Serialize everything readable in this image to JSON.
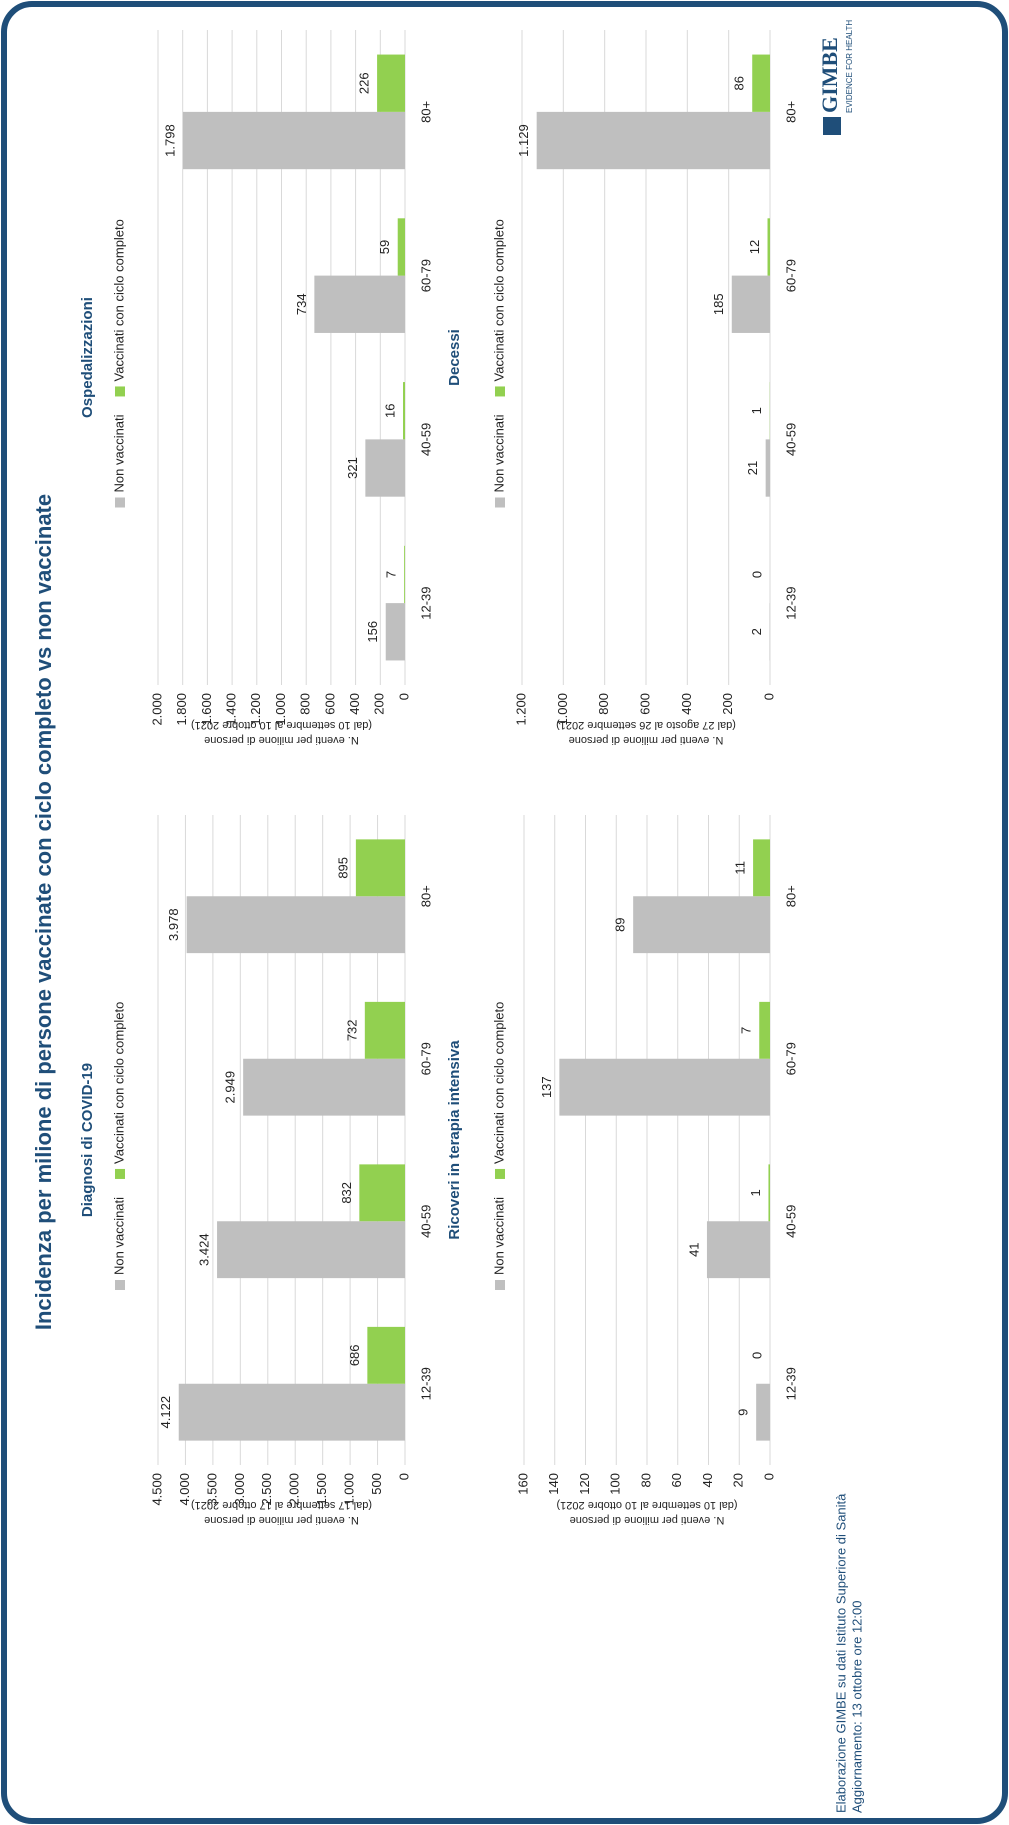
{
  "title": "Incidenza per milione di persone vaccinate con ciclo completo vs non vaccinate",
  "footer": [
    "Elaborazione GIMBE su dati Istituto Superiore di Sanità",
    "Aggiornamento: 13 ottobre ore 12:00"
  ],
  "logo": {
    "name": "GIMBE",
    "tagline": "EVIDENCE FOR HEALTH"
  },
  "chart_data": [
    {
      "type": "bar",
      "title": "Diagnosi di COVID-19",
      "ylabel": [
        "N. eventi per milione di persone",
        "(dal 17 settembre al 17 ottobre 2021)"
      ],
      "categories": [
        "12-39",
        "40-59",
        "60-79",
        "80+"
      ],
      "series": [
        {
          "name": "Non vaccinati",
          "color": "#bfbfbf",
          "values": [
            4122,
            3424,
            2949,
            3978
          ],
          "value_labels": [
            "4.122",
            "3.424",
            "2.949",
            "3.978"
          ]
        },
        {
          "name": "Vaccinati con ciclo completo",
          "color": "#92d050",
          "values": [
            686,
            832,
            732,
            895
          ]
        }
      ],
      "ylim": [
        0,
        4500
      ],
      "yticks": [
        0,
        500,
        {
          "value": 1000,
          "label": "1.000"
        },
        {
          "value": 1500,
          "label": "1.500"
        },
        {
          "value": 2000,
          "label": "2.000"
        },
        {
          "value": 2500,
          "label": "2.500"
        },
        {
          "value": 3000,
          "label": "3.000"
        },
        {
          "value": 3500,
          "label": "3.500"
        },
        {
          "value": 4000,
          "label": "4.000"
        },
        {
          "value": 4500,
          "label": "4.500"
        }
      ],
      "grid": true
    },
    {
      "type": "bar",
      "title": "Ospedalizzazioni",
      "ylabel": [
        "N. eventi per milione di persone",
        "(dal 10 settembre al 10 ottobre 2021)"
      ],
      "categories": [
        "12-39",
        "40-59",
        "60-79",
        "80+"
      ],
      "series": [
        {
          "name": "Non vaccinati",
          "color": "#bfbfbf",
          "values": [
            156,
            321,
            734,
            1798
          ],
          "value_labels": [
            "156",
            "321",
            "734",
            "1.798"
          ]
        },
        {
          "name": "Vaccinati con ciclo completo",
          "color": "#92d050",
          "values": [
            7,
            16,
            59,
            226
          ]
        }
      ],
      "ylim": [
        0,
        2000
      ],
      "yticks": [
        0,
        200,
        400,
        600,
        800,
        {
          "value": 1000,
          "label": "1.000"
        },
        {
          "value": 1200,
          "label": "1.200"
        },
        {
          "value": 1400,
          "label": "1.400"
        },
        {
          "value": 1600,
          "label": "1.600"
        },
        {
          "value": 1800,
          "label": "1.800"
        },
        {
          "value": 2000,
          "label": "2.000"
        }
      ],
      "grid": true
    },
    {
      "type": "bar",
      "title": "Ricoveri in terapia intensiva",
      "ylabel": [
        "N. eventi per milione di persone",
        "(dal 10 settembre al 10 ottobre 2021)"
      ],
      "categories": [
        "12-39",
        "40-59",
        "60-79",
        "80+"
      ],
      "series": [
        {
          "name": "Non vaccinati",
          "color": "#bfbfbf",
          "values": [
            9,
            41,
            137,
            89
          ]
        },
        {
          "name": "Vaccinati con ciclo completo",
          "color": "#92d050",
          "values": [
            0,
            1,
            7,
            11
          ]
        }
      ],
      "ylim": [
        0,
        160
      ],
      "yticks": [
        0,
        20,
        40,
        60,
        80,
        100,
        120,
        140,
        160
      ],
      "grid": true
    },
    {
      "type": "bar",
      "title": "Decessi",
      "ylabel": [
        "N. eventi per milione di persone",
        "(dal 27 agosto al 26 settembre 2021)"
      ],
      "categories": [
        "12-39",
        "40-59",
        "60-79",
        "80+"
      ],
      "series": [
        {
          "name": "Non vaccinati",
          "color": "#bfbfbf",
          "values": [
            2,
            21,
            185,
            1129
          ],
          "value_labels": [
            "2",
            "21",
            "185",
            "1.129"
          ]
        },
        {
          "name": "Vaccinati con ciclo completo",
          "color": "#92d050",
          "values": [
            0,
            1,
            12,
            86
          ]
        }
      ],
      "ylim": [
        0,
        1200
      ],
      "yticks": [
        0,
        200,
        400,
        600,
        800,
        {
          "value": 1000,
          "label": "1.000"
        },
        {
          "value": 1200,
          "label": "1.200"
        }
      ],
      "grid": true
    }
  ]
}
